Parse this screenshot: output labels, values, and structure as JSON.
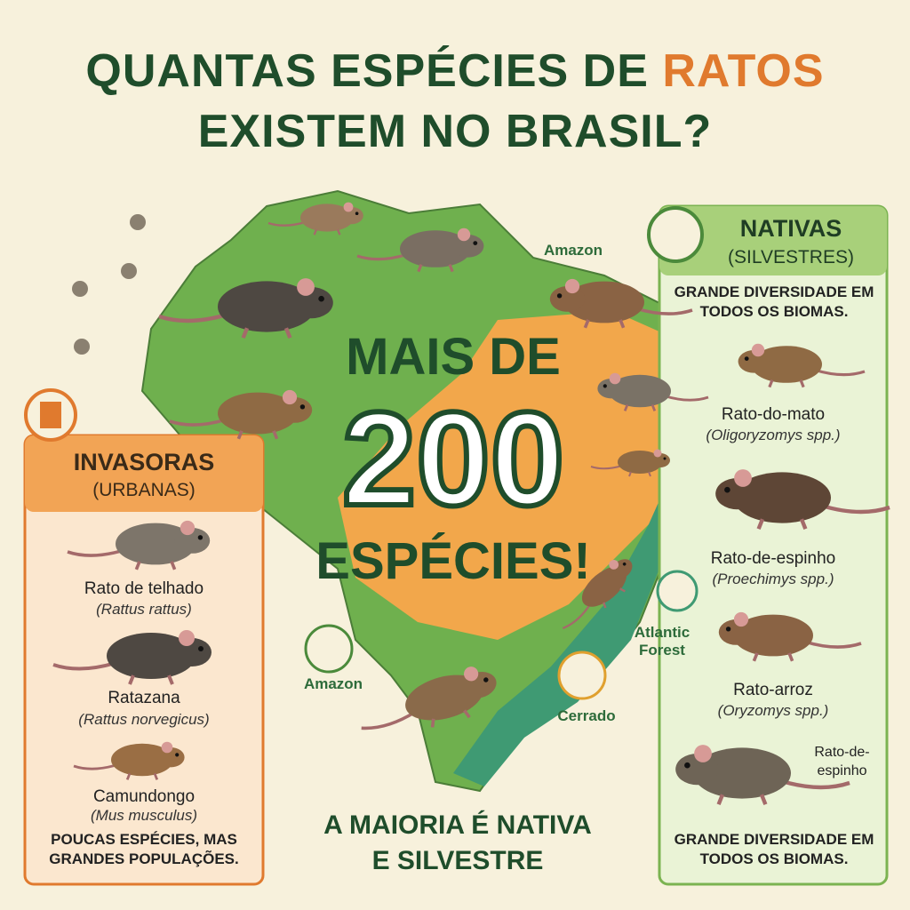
{
  "title": {
    "line1": "QUANTAS ESPÉCIES DE",
    "highlight": "RATOS",
    "line2": "EXISTEM NO BRASIL?"
  },
  "center": {
    "top": "MAIS DE",
    "number": "200",
    "bottom": "ESPÉCIES!"
  },
  "footer": {
    "line1": "A MAIORIA É NATIVA",
    "line2": "E SILVESTRE"
  },
  "map_labels": [
    "Amazon",
    "Amazon",
    "Atlantic Forest",
    "Cerrado"
  ],
  "invasive": {
    "title": "INVASORAS",
    "subtitle": "(URBANAS)",
    "species": [
      {
        "name": "Rato de telhado",
        "scientific": "(Rattus rattus)"
      },
      {
        "name": "Ratazana",
        "scientific": "(Rattus norvegicus)"
      },
      {
        "name": "Camundongo",
        "scientific": "(Mus musculus)"
      }
    ],
    "note": "POUCAS ESPÉCIES, MAS GRANDES POPULAÇÕES."
  },
  "native": {
    "title": "NATIVAS",
    "subtitle": "(SILVESTRES)",
    "intro": "GRANDE DIVERSIDADE EM TODOS OS BIOMAS.",
    "species": [
      {
        "name": "Rato-do-mato",
        "scientific": "(Oligoryzomys spp.)"
      },
      {
        "name": "Rato-de-espinho",
        "scientific": "(Proechimys spp.)"
      },
      {
        "name": "Rato-arroz",
        "scientific": "(Oryzomys spp.)"
      }
    ],
    "extra_label": "Rato-de-espinho",
    "note": "GRANDE DIVERSIDADE EM TODOS OS BIOMAS."
  }
}
